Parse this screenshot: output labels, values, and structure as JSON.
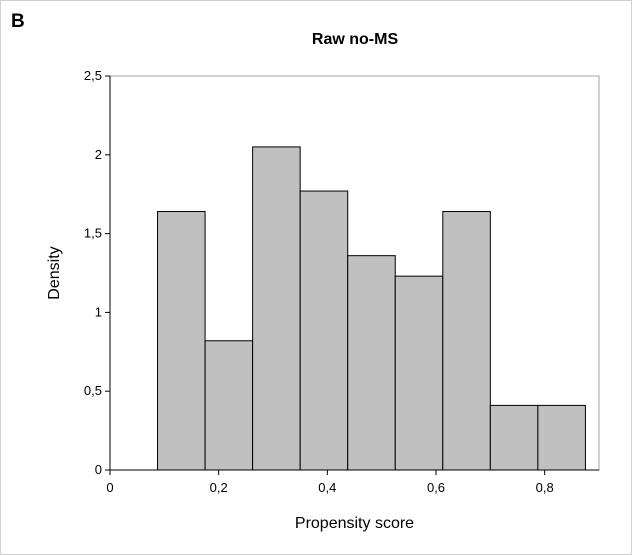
{
  "panel_label": "B",
  "chart_data": {
    "type": "bar",
    "title": "Raw no-MS",
    "xlabel": "Propensity score",
    "ylabel": "Density",
    "bin_edges": [
      0,
      0.0875,
      0.175,
      0.2625,
      0.35,
      0.4375,
      0.525,
      0.6125,
      0.7,
      0.7875,
      0.875
    ],
    "values": [
      0,
      1.64,
      0.82,
      2.05,
      1.77,
      1.36,
      1.23,
      1.64,
      0.41,
      0.41
    ],
    "xlim": [
      0,
      0.9
    ],
    "ylim": [
      0,
      2.5
    ],
    "xticks": [
      0,
      0.2,
      0.4,
      0.6,
      0.8
    ],
    "xtick_labels": [
      "0",
      "0,2",
      "0,4",
      "0,6",
      "0,8"
    ],
    "yticks": [
      0,
      0.5,
      1,
      1.5,
      2,
      2.5
    ],
    "ytick_labels": [
      "0",
      "0,5",
      "1",
      "1,5",
      "2",
      "2,5"
    ],
    "grid": false,
    "bar_color": "#c0c0c0",
    "edge_color": "#000000"
  }
}
